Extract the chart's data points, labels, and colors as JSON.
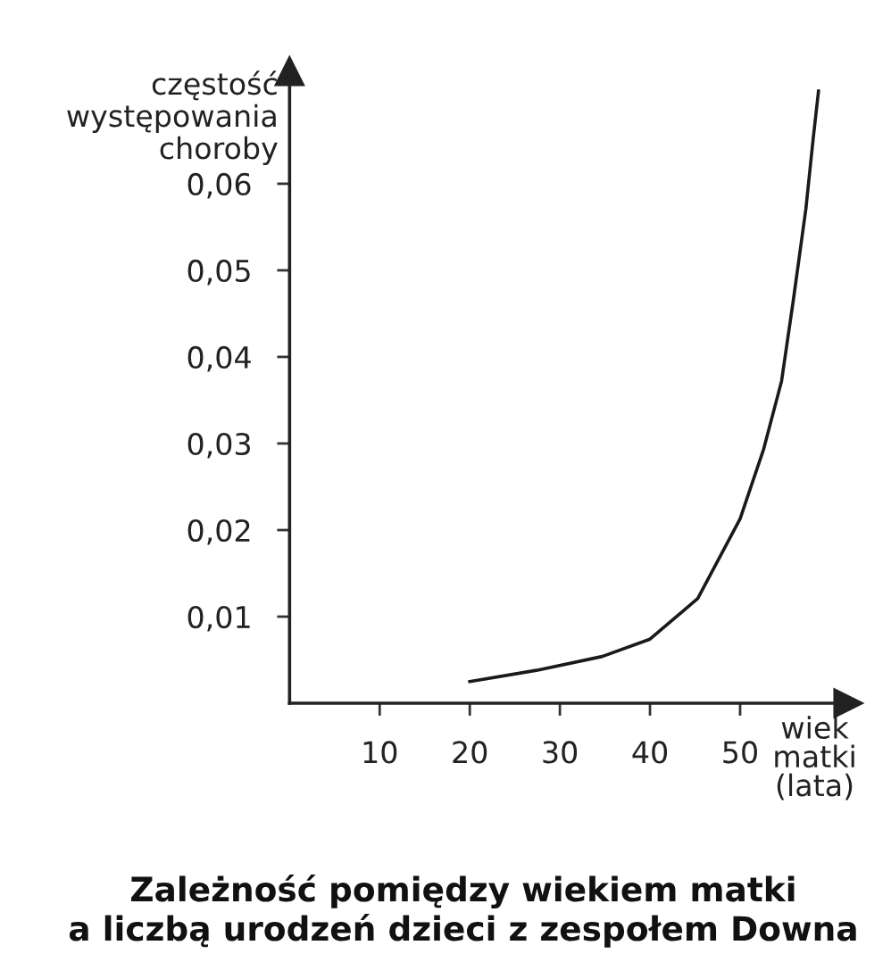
{
  "chart_data": {
    "type": "line",
    "title": "Zależność pomiędzy wiekiem matki\na liczbą urodzeń dzieci z zespołem Downa",
    "xlabel": "wiek\nmatki\n(lata)",
    "ylabel": "częstość\nwystępowania\nchoroby",
    "x": [
      20,
      27.4,
      34.7,
      40,
      45.3,
      50,
      52.6,
      54.6,
      55.9,
      57.3,
      58.1,
      58.7
    ],
    "series": [
      {
        "color": "#1a1a1a",
        "values": [
          0.0025,
          0.0038,
          0.0054,
          0.0074,
          0.0121,
          0.0213,
          0.0293,
          0.0372,
          0.0465,
          0.0571,
          0.0651,
          0.0707
        ]
      }
    ],
    "xlim": [
      0,
      62
    ],
    "ylim": [
      0,
      0.073
    ],
    "xticks": [
      10,
      20,
      30,
      40,
      50
    ],
    "yticks": [
      {
        "value": 0.01,
        "label": "0,01"
      },
      {
        "value": 0.02,
        "label": "0,02"
      },
      {
        "value": 0.03,
        "label": "0,03"
      },
      {
        "value": 0.04,
        "label": "0,04"
      },
      {
        "value": 0.05,
        "label": "0,05"
      },
      {
        "value": 0.06,
        "label": "0,06"
      }
    ],
    "grid": false,
    "legend": false,
    "marker": "none",
    "line_style": "solid"
  }
}
